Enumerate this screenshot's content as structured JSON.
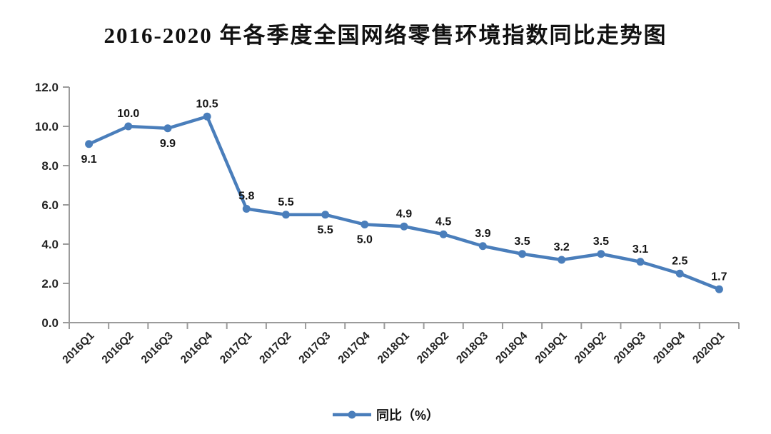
{
  "title": "2016-2020 年各季度全国网络零售环境指数同比走势图",
  "legend": {
    "label": "同比（%）"
  },
  "chart_data": {
    "type": "line",
    "title": "2016-2020 年各季度全国网络零售环境指数同比走势图",
    "categories": [
      "2016Q1",
      "2016Q2",
      "2016Q3",
      "2016Q4",
      "2017Q1",
      "2017Q2",
      "2017Q3",
      "2017Q4",
      "2018Q1",
      "2018Q2",
      "2018Q3",
      "2018Q4",
      "2019Q1",
      "2019Q2",
      "2019Q3",
      "2019Q4",
      "2020Q1"
    ],
    "series": [
      {
        "name": "同比（%）",
        "values": [
          9.1,
          10.0,
          9.9,
          10.5,
          5.8,
          5.5,
          5.5,
          5.0,
          4.9,
          4.5,
          3.9,
          3.5,
          3.2,
          3.5,
          3.1,
          2.5,
          1.7
        ],
        "data_labels": [
          "9.1",
          "10.0",
          "9.9",
          "10.5",
          "5.8",
          "5.5",
          "5.5",
          "5.0",
          "4.9",
          "4.5",
          "3.9",
          "3.5",
          "3.2",
          "3.5",
          "3.1",
          "2.5",
          "1.7"
        ]
      }
    ],
    "xlabel": "",
    "ylabel": "",
    "ylim": [
      0,
      12
    ],
    "ytick_step": 2,
    "ytick_labels": [
      "0.0",
      "2.0",
      "4.0",
      "6.0",
      "8.0",
      "10.0",
      "12.0"
    ],
    "grid": false,
    "legend_position": "bottom",
    "x_label_rotation": -45,
    "data_label_sides": [
      "below",
      "above",
      "below",
      "above",
      "above",
      "above",
      "below",
      "below",
      "above",
      "above",
      "above",
      "above",
      "above",
      "above",
      "above",
      "above",
      "above"
    ],
    "colors": {
      "line": "#4A7EBB",
      "axis": "#9B9B9B",
      "tick_label": "#242424",
      "data_label": "#141414"
    }
  }
}
